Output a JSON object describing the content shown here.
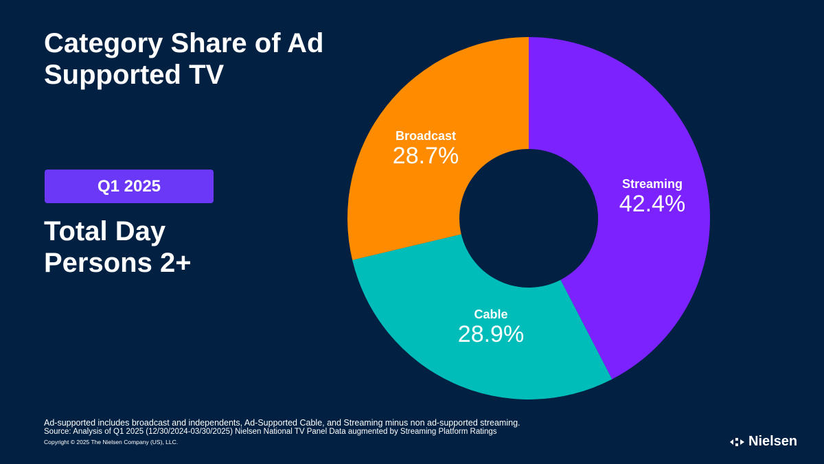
{
  "title": "Category Share of Ad Supported TV",
  "badge": "Q1 2025",
  "subtitle_line1": "Total Day",
  "subtitle_line2": "Persons 2+",
  "chart_data": {
    "type": "pie",
    "donut": true,
    "start": "top, clockwise",
    "slices": [
      {
        "label": "Streaming",
        "value": 42.4,
        "display": "42.4%",
        "color": "#7B22FF"
      },
      {
        "label": "Cable",
        "value": 28.9,
        "display": "28.9%",
        "color": "#00BDB9"
      },
      {
        "label": "Broadcast",
        "value": 28.7,
        "display": "28.7%",
        "color": "#FF8C00"
      }
    ]
  },
  "footer": {
    "note": "Ad-supported includes broadcast and independents, Ad-Supported Cable, and Streaming minus non ad-supported streaming.",
    "source": "Source: Analysis of Q1 2025 (12/30/2024-03/30/2025)  Nielsen National TV Panel Data augmented by Streaming Platform Ratings",
    "copyright": "Copyright © 2025 The Nielsen Company (US), LLC."
  },
  "logo": {
    "text": "Nielsen"
  },
  "colors": {
    "background": "#012042",
    "badge": "#6C38F7"
  }
}
